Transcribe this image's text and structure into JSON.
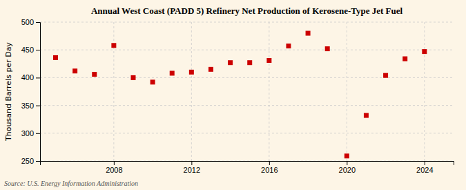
{
  "chart_data": {
    "type": "scatter",
    "title": "Annual West Coast (PADD 5) Refinery Net Production of Kerosene-Type Jet Fuel",
    "y_label": "Thousand Barrels per Day",
    "annotations": [
      "Source: U.S. Energy Information Administration"
    ],
    "x": [
      2005,
      2006,
      2007,
      2008,
      2009,
      2010,
      2011,
      2012,
      2013,
      2014,
      2015,
      2016,
      2017,
      2018,
      2019,
      2020,
      2021,
      2022,
      2023,
      2024
    ],
    "values": [
      436,
      412,
      406,
      458,
      400,
      392,
      408,
      410,
      415,
      427,
      427,
      431,
      457,
      480,
      452,
      259,
      332,
      404,
      434,
      447
    ],
    "color": "#cc0000",
    "marker": "square",
    "xlim": [
      2004.2,
      2025.5
    ],
    "xticks": [
      2008,
      2012,
      2016,
      2020,
      2024
    ],
    "ylim": [
      250,
      500
    ],
    "yticks": [
      250,
      300,
      350,
      400,
      450,
      500
    ],
    "grid": true
  }
}
